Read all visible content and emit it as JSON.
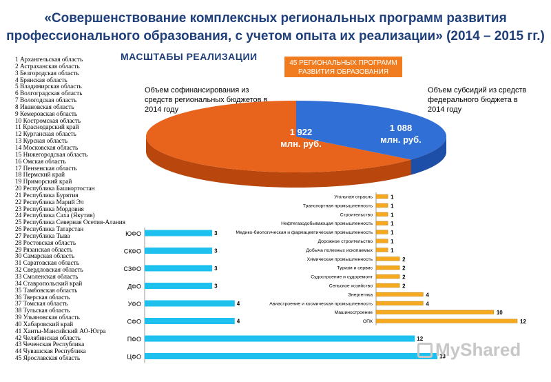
{
  "title_line1": "«Совершенствование комплексных региональных программ развития",
  "title_line2": "профессионального образования, с учетом опыта их реализации» (2014 – 2015 гг.)",
  "subtitle": "МАСШТАБЫ РЕАЛИЗАЦИИ",
  "badge_line1": "45 РЕГИОНАЛЬНЫХ ПРОГРАММ",
  "badge_line2": "РАЗВИТИЯ ОБРАЗОВАНИЯ",
  "watermark": "MyShared",
  "regions": [
    "1 Архангельская область",
    "2 Астраханская область",
    "3 Белгородская область",
    "4 Брянская область",
    "5 Владимирская область",
    "6 Волгоградская область",
    "7 Вологодская область",
    "8 Ивановская область",
    "9 Кемеровская область",
    "10 Костромская область",
    "11 Краснодарский край",
    "12 Курганская область",
    "13 Курская область",
    "14 Московская область",
    "15 Нижегородская область",
    "16 Омская область",
    "17 Пензенская область",
    "18 Пермский край",
    "19 Приморский край",
    "20 Республика Башкортостан",
    "21 Республика Бурятия",
    "22 Республика Марий Эл",
    "23 Республика Мордовия",
    "24 Республика Саха (Якутия)",
    "25 Республика Северная Осетия-Алания",
    "26 Республика Татарстан",
    "27 Республика Тыва",
    "28 Ростовская область",
    "29 Рязанская область",
    "30 Самарская область",
    "31 Саратовская область",
    "32 Свердловская область",
    "33 Смоленская область",
    "34 Ставропольский край",
    "35 Тамбовская область",
    "36 Тверская область",
    "37 Томская область",
    "38 Тульская область",
    "39 Ульяновская область",
    "40 Хабаровский край",
    "41 Ханты-Мансийский АО-Югра",
    "42 Челябинская область",
    "43 Чеченская Республика",
    "44 Чувашская Республика",
    "45 Ярославская область"
  ],
  "chart_data": [
    {
      "type": "pie",
      "caption_left": "Объем софинансирования из средств региональных бюджетов в 2014 году",
      "caption_right": "Объем субсидий из средств федерального бюджета в 2014 году",
      "slices": [
        {
          "label": "1 922 млн. руб.",
          "line1": "1 922",
          "line2": "млн. руб.",
          "value": 1922,
          "color": "#e8631c"
        },
        {
          "label": "1 088 млн. руб.",
          "line1": "1 088",
          "line2": "млн. руб.",
          "value": 1088,
          "color": "#2f6fd6"
        }
      ]
    },
    {
      "type": "bar",
      "orientation": "horizontal",
      "categories": [
        "ЮФО",
        "СКФО",
        "СЗФО",
        "ДФО",
        "УФО",
        "СФО",
        "ПФО",
        "ЦФО"
      ],
      "values": [
        3,
        3,
        3,
        3,
        4,
        4,
        12,
        13
      ],
      "color": "#1ec0ee",
      "xlim": [
        0,
        13
      ]
    },
    {
      "type": "bar",
      "orientation": "horizontal",
      "categories": [
        "Угольная отрасль",
        "Транспортная промышленность",
        "Строительство",
        "Нефтегазодобывающая промышленность",
        "Медико-биологическая и фармацевтическая промышленность",
        "Дорожное строительство",
        "Добыча полезных ископаемых",
        "Химическая промышленность",
        "Туризм и сервис",
        "Судостроение и судоремонт",
        "Сельское хозяйство",
        "Энергетика",
        "Авиастроение и космическая промышленность",
        "Машиностроение",
        "ОПК"
      ],
      "values": [
        1,
        1,
        1,
        1,
        1,
        1,
        1,
        2,
        2,
        2,
        2,
        4,
        4,
        10,
        12
      ],
      "color": "#f4a91f",
      "xlim": [
        0,
        12
      ]
    }
  ]
}
